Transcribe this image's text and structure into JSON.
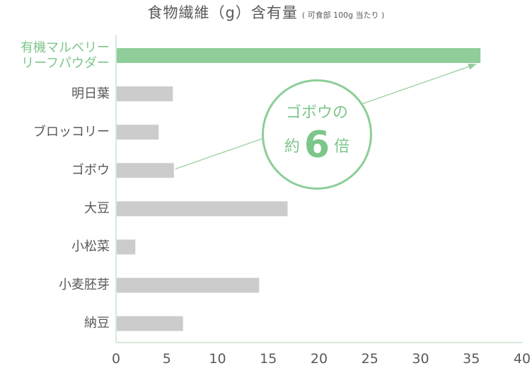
{
  "title": {
    "main": "食物繊維（g）含有量",
    "sub": "( 可食部 100g 当たり )"
  },
  "callout": {
    "line1": "ゴボウの",
    "prefix": "約",
    "multiplier": "6",
    "suffix": "倍"
  },
  "highlight_label": [
    "有機マルベリー",
    "リーフパウダー"
  ],
  "colors": {
    "highlight": "#8fcd9a",
    "bar": "#cccccc",
    "axis": "#c8e3cc",
    "accent_text": "#7cc68a"
  },
  "chart_data": {
    "type": "bar",
    "orientation": "horizontal",
    "categories": [
      "有機マルベリーリーフパウダー",
      "明日葉",
      "ブロッコリー",
      "ゴボウ",
      "大豆",
      "小松菜",
      "小麦胚芽",
      "納豆"
    ],
    "values": [
      35.9,
      5.6,
      4.2,
      5.7,
      16.9,
      1.9,
      14.1,
      6.6
    ],
    "xlim": [
      0,
      40
    ],
    "xticks": [
      "0",
      "5",
      "10",
      "15",
      "20",
      "25",
      "30",
      "35",
      "40"
    ],
    "highlight_index": 0,
    "annotation": {
      "from_category": "ゴボウ",
      "to_category": "有機マルベリーリーフパウダー",
      "text": "ゴボウの約6倍"
    },
    "grid": false,
    "legend": "none"
  }
}
